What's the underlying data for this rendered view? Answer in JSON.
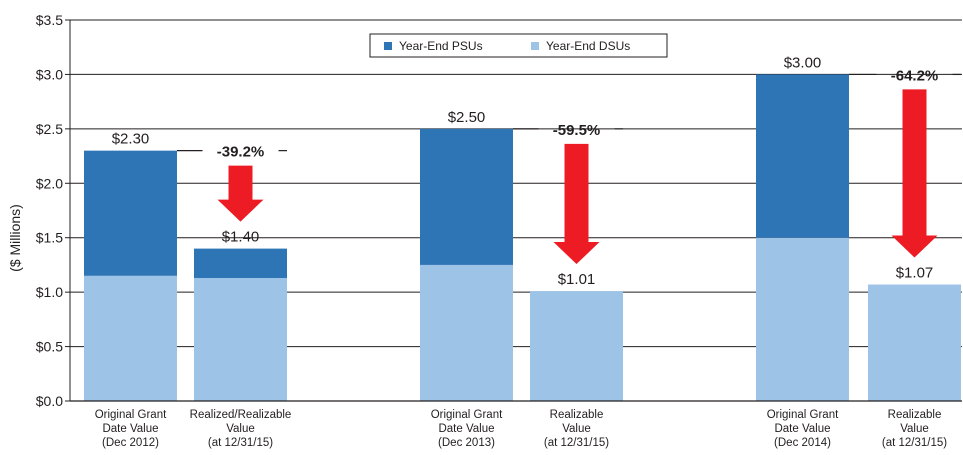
{
  "chart_data": {
    "type": "bar",
    "stacked": true,
    "ylabel": "($ Millions)",
    "ylim": [
      0,
      3.5
    ],
    "yticks": [
      "$0.0",
      "$0.5",
      "$1.0",
      "$1.5",
      "$2.0",
      "$2.5",
      "$3.0",
      "$3.5"
    ],
    "grid": true,
    "legend_position": "top-center",
    "categories": [
      [
        "Original Grant",
        "Date Value",
        "(Dec 2012)"
      ],
      [
        "Realized/Realizable",
        "Value",
        "(at 12/31/15)"
      ],
      [
        "Original Grant",
        "Date Value",
        "(Dec 2013)"
      ],
      [
        "Realizable",
        "Value",
        "(at 12/31/15)"
      ],
      [
        "Original Grant",
        "Date Value",
        "(Dec 2014)"
      ],
      [
        "Realizable",
        "Value",
        "(at 12/31/15)"
      ]
    ],
    "series": [
      {
        "name": "Year-End DSUs",
        "color": "#9dc3e6",
        "values": [
          1.15,
          1.13,
          1.25,
          1.01,
          1.5,
          1.07
        ]
      },
      {
        "name": "Year-End PSUs",
        "color": "#2e75b6",
        "values": [
          1.15,
          0.27,
          1.25,
          0.0,
          1.5,
          0.0
        ]
      }
    ],
    "legend_order": [
      "Year-End PSUs",
      "Year-End DSUs"
    ],
    "total_labels": [
      "$2.30",
      "$1.40",
      "$2.50",
      "$1.01",
      "$3.00",
      "$1.07"
    ],
    "changes": [
      {
        "label": "-39.2%",
        "from": 0,
        "to": 1
      },
      {
        "label": "-59.5%",
        "from": 2,
        "to": 3
      },
      {
        "label": "-64.2%",
        "from": 4,
        "to": 5
      }
    ],
    "arrow_color": "#ed1c24"
  }
}
